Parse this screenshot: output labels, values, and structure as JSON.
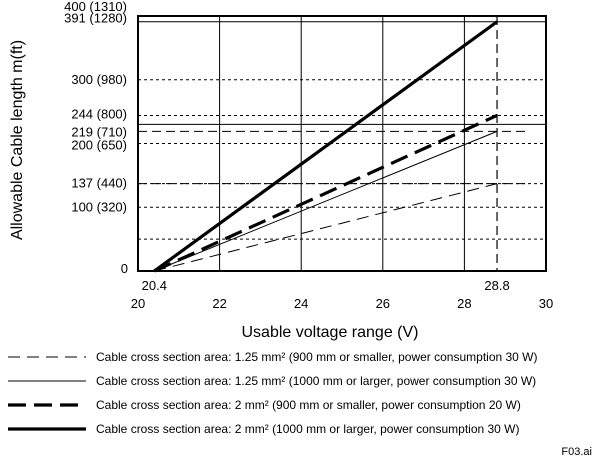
{
  "chart_data": {
    "type": "line",
    "xlabel": "Usable voltage range (V)",
    "ylabel": "Allowable Cable length m(ft)",
    "xlim": [
      20,
      30
    ],
    "ylim": [
      0,
      420
    ],
    "x_ticks": [
      "20",
      "22",
      "24",
      "26",
      "28",
      "30"
    ],
    "x_extra_ticks": [
      "20.4",
      "28.8"
    ],
    "y_ticks": [
      {
        "value": 0,
        "label": "0"
      },
      {
        "value": 100,
        "label": "100 (320)"
      },
      {
        "value": 137,
        "label": "137 (440)"
      },
      {
        "value": 200,
        "label": "200 (650)"
      },
      {
        "value": 219,
        "label": "219 (710)"
      },
      {
        "value": 244,
        "label": "244 (800)"
      },
      {
        "value": 300,
        "label": "300 (980)"
      },
      {
        "value": 391,
        "label": "391 (1280)"
      },
      {
        "value": 400,
        "label": "400 (1310)"
      }
    ],
    "grid": true,
    "legend_position": "bottom",
    "series": [
      {
        "name": "Cable cross section area: 1.25 mm² (900 mm or smaller, power consumption 30 W)",
        "style": "thin-dashed",
        "x": [
          20.4,
          28.8
        ],
        "y": [
          0,
          137
        ]
      },
      {
        "name": "Cable cross section area: 1.25 mm² (1000 mm or larger, power consumption 30 W)",
        "style": "thin-solid",
        "x": [
          20.4,
          28.8
        ],
        "y": [
          0,
          219
        ]
      },
      {
        "name": "Cable cross section area: 2 mm² (900 mm or smaller, power consumption 20 W)",
        "style": "thick-dashed",
        "x": [
          20.4,
          28.8
        ],
        "y": [
          0,
          244
        ]
      },
      {
        "name": "Cable cross section area: 2 mm² (1000 mm or larger, power consumption 30 W)",
        "style": "thick-solid",
        "x": [
          20.4,
          28.8
        ],
        "y": [
          0,
          391
        ]
      }
    ],
    "file_id": "F03.ai"
  }
}
